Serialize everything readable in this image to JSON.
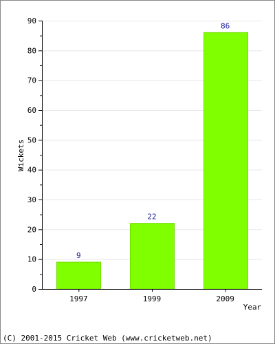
{
  "chart_data": {
    "type": "bar",
    "categories": [
      "1997",
      "1999",
      "2009"
    ],
    "values": [
      9,
      22,
      86
    ],
    "value_labels": [
      "9",
      "22",
      "86"
    ],
    "xlabel": "Year",
    "ylabel": "Wickets",
    "ylim": [
      0,
      90
    ],
    "y_ticks": [
      0,
      10,
      20,
      30,
      40,
      50,
      60,
      70,
      80,
      90
    ],
    "y_tick_labels": [
      "0",
      "10",
      "20",
      "30",
      "40",
      "50",
      "60",
      "70",
      "80",
      "90"
    ],
    "grid": true,
    "colors": {
      "bar": "#80ff00",
      "bar_edge": "#6fdc00",
      "value_label": "#1a1aa0",
      "grid": "#e6e6e6",
      "frame": "#888888"
    }
  },
  "footer": {
    "copyright": "(C) 2001-2015 Cricket Web (www.cricketweb.net)"
  }
}
